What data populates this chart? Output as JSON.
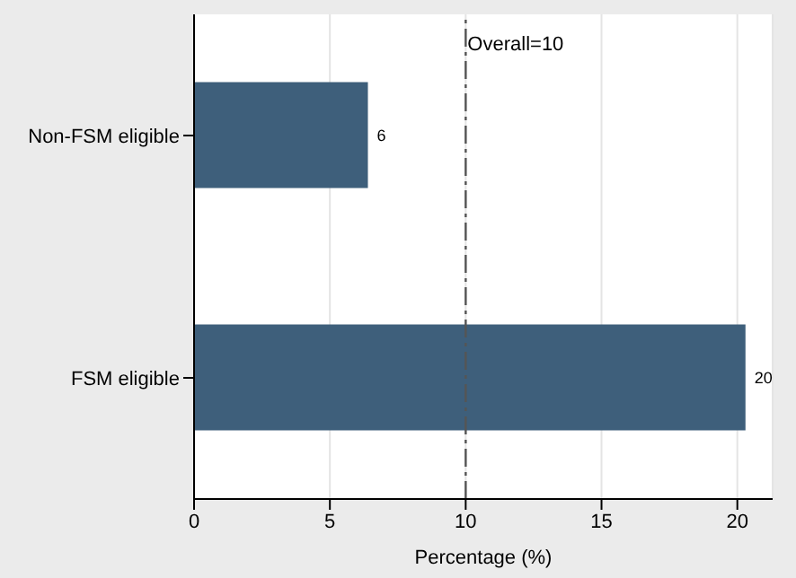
{
  "chart_data": {
    "type": "bar",
    "orientation": "horizontal",
    "categories": [
      "Non-FSM eligible",
      "FSM eligible"
    ],
    "values": [
      6.4,
      20.3
    ],
    "value_labels": [
      "6",
      "20"
    ],
    "color": "#3e5f7b",
    "xlabel": "Percentage (%)",
    "xlim": [
      0,
      21.3
    ],
    "xticks": [
      0,
      5,
      10,
      15,
      20
    ],
    "grid": "x",
    "ref_lines": [
      {
        "axis": "x",
        "value": 10,
        "label": "Overall=10",
        "color": "#555555",
        "line_style": "dashdot"
      }
    ]
  }
}
